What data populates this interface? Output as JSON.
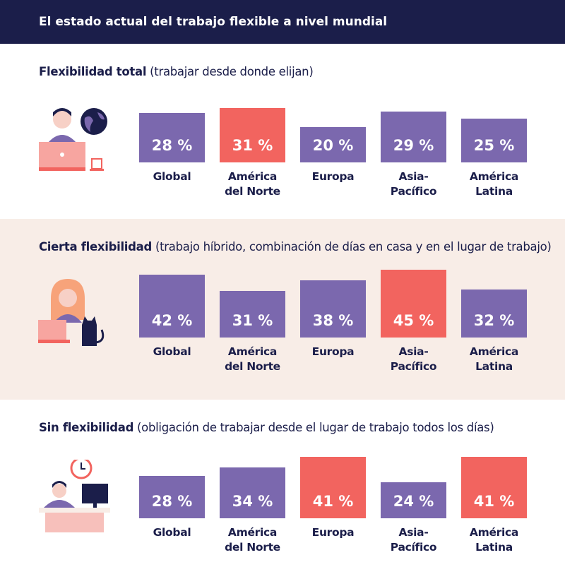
{
  "header": {
    "title": "El estado actual del trabajo flexible a nivel mundial"
  },
  "chart_data": [
    {
      "type": "bar",
      "title": "Flexibilidad total",
      "subtitle": "(trabajar desde donde elijan)",
      "categories": [
        "Global",
        "América del Norte",
        "Europa",
        "Asia-Pacífico",
        "América Latina"
      ],
      "values": [
        28,
        31,
        20,
        29,
        25
      ],
      "value_labels": [
        "28 %",
        "31 %",
        "20 %",
        "29 %",
        "25 %"
      ],
      "colors": [
        "#7b68ae",
        "#f2645f",
        "#7b68ae",
        "#7b68ae",
        "#7b68ae"
      ],
      "ylim": [
        0,
        40
      ]
    },
    {
      "type": "bar",
      "title": "Cierta flexibilidad",
      "subtitle": "(trabajo híbrido, combinación de días en casa y en el lugar de trabajo)",
      "categories": [
        "Global",
        "América del Norte",
        "Europa",
        "Asia-Pacífico",
        "América Latina"
      ],
      "values": [
        42,
        31,
        38,
        45,
        32
      ],
      "value_labels": [
        "42 %",
        "31 %",
        "38 %",
        "45 %",
        "32 %"
      ],
      "colors": [
        "#7b68ae",
        "#7b68ae",
        "#7b68ae",
        "#f2645f",
        "#7b68ae"
      ],
      "ylim": [
        0,
        47
      ]
    },
    {
      "type": "bar",
      "title": "Sin flexibilidad",
      "subtitle": "(obligación de trabajar desde el lugar de trabajo todos los días)",
      "categories": [
        "Global",
        "América del Norte",
        "Europa",
        "Asia-Pacífico",
        "América Latina"
      ],
      "values": [
        28,
        34,
        41,
        24,
        41
      ],
      "value_labels": [
        "28 %",
        "34 %",
        "41 %",
        "24 %",
        "41 %"
      ],
      "colors": [
        "#7b68ae",
        "#7b68ae",
        "#f2645f",
        "#7b68ae",
        "#f2645f"
      ],
      "ylim": [
        0,
        47
      ]
    }
  ]
}
